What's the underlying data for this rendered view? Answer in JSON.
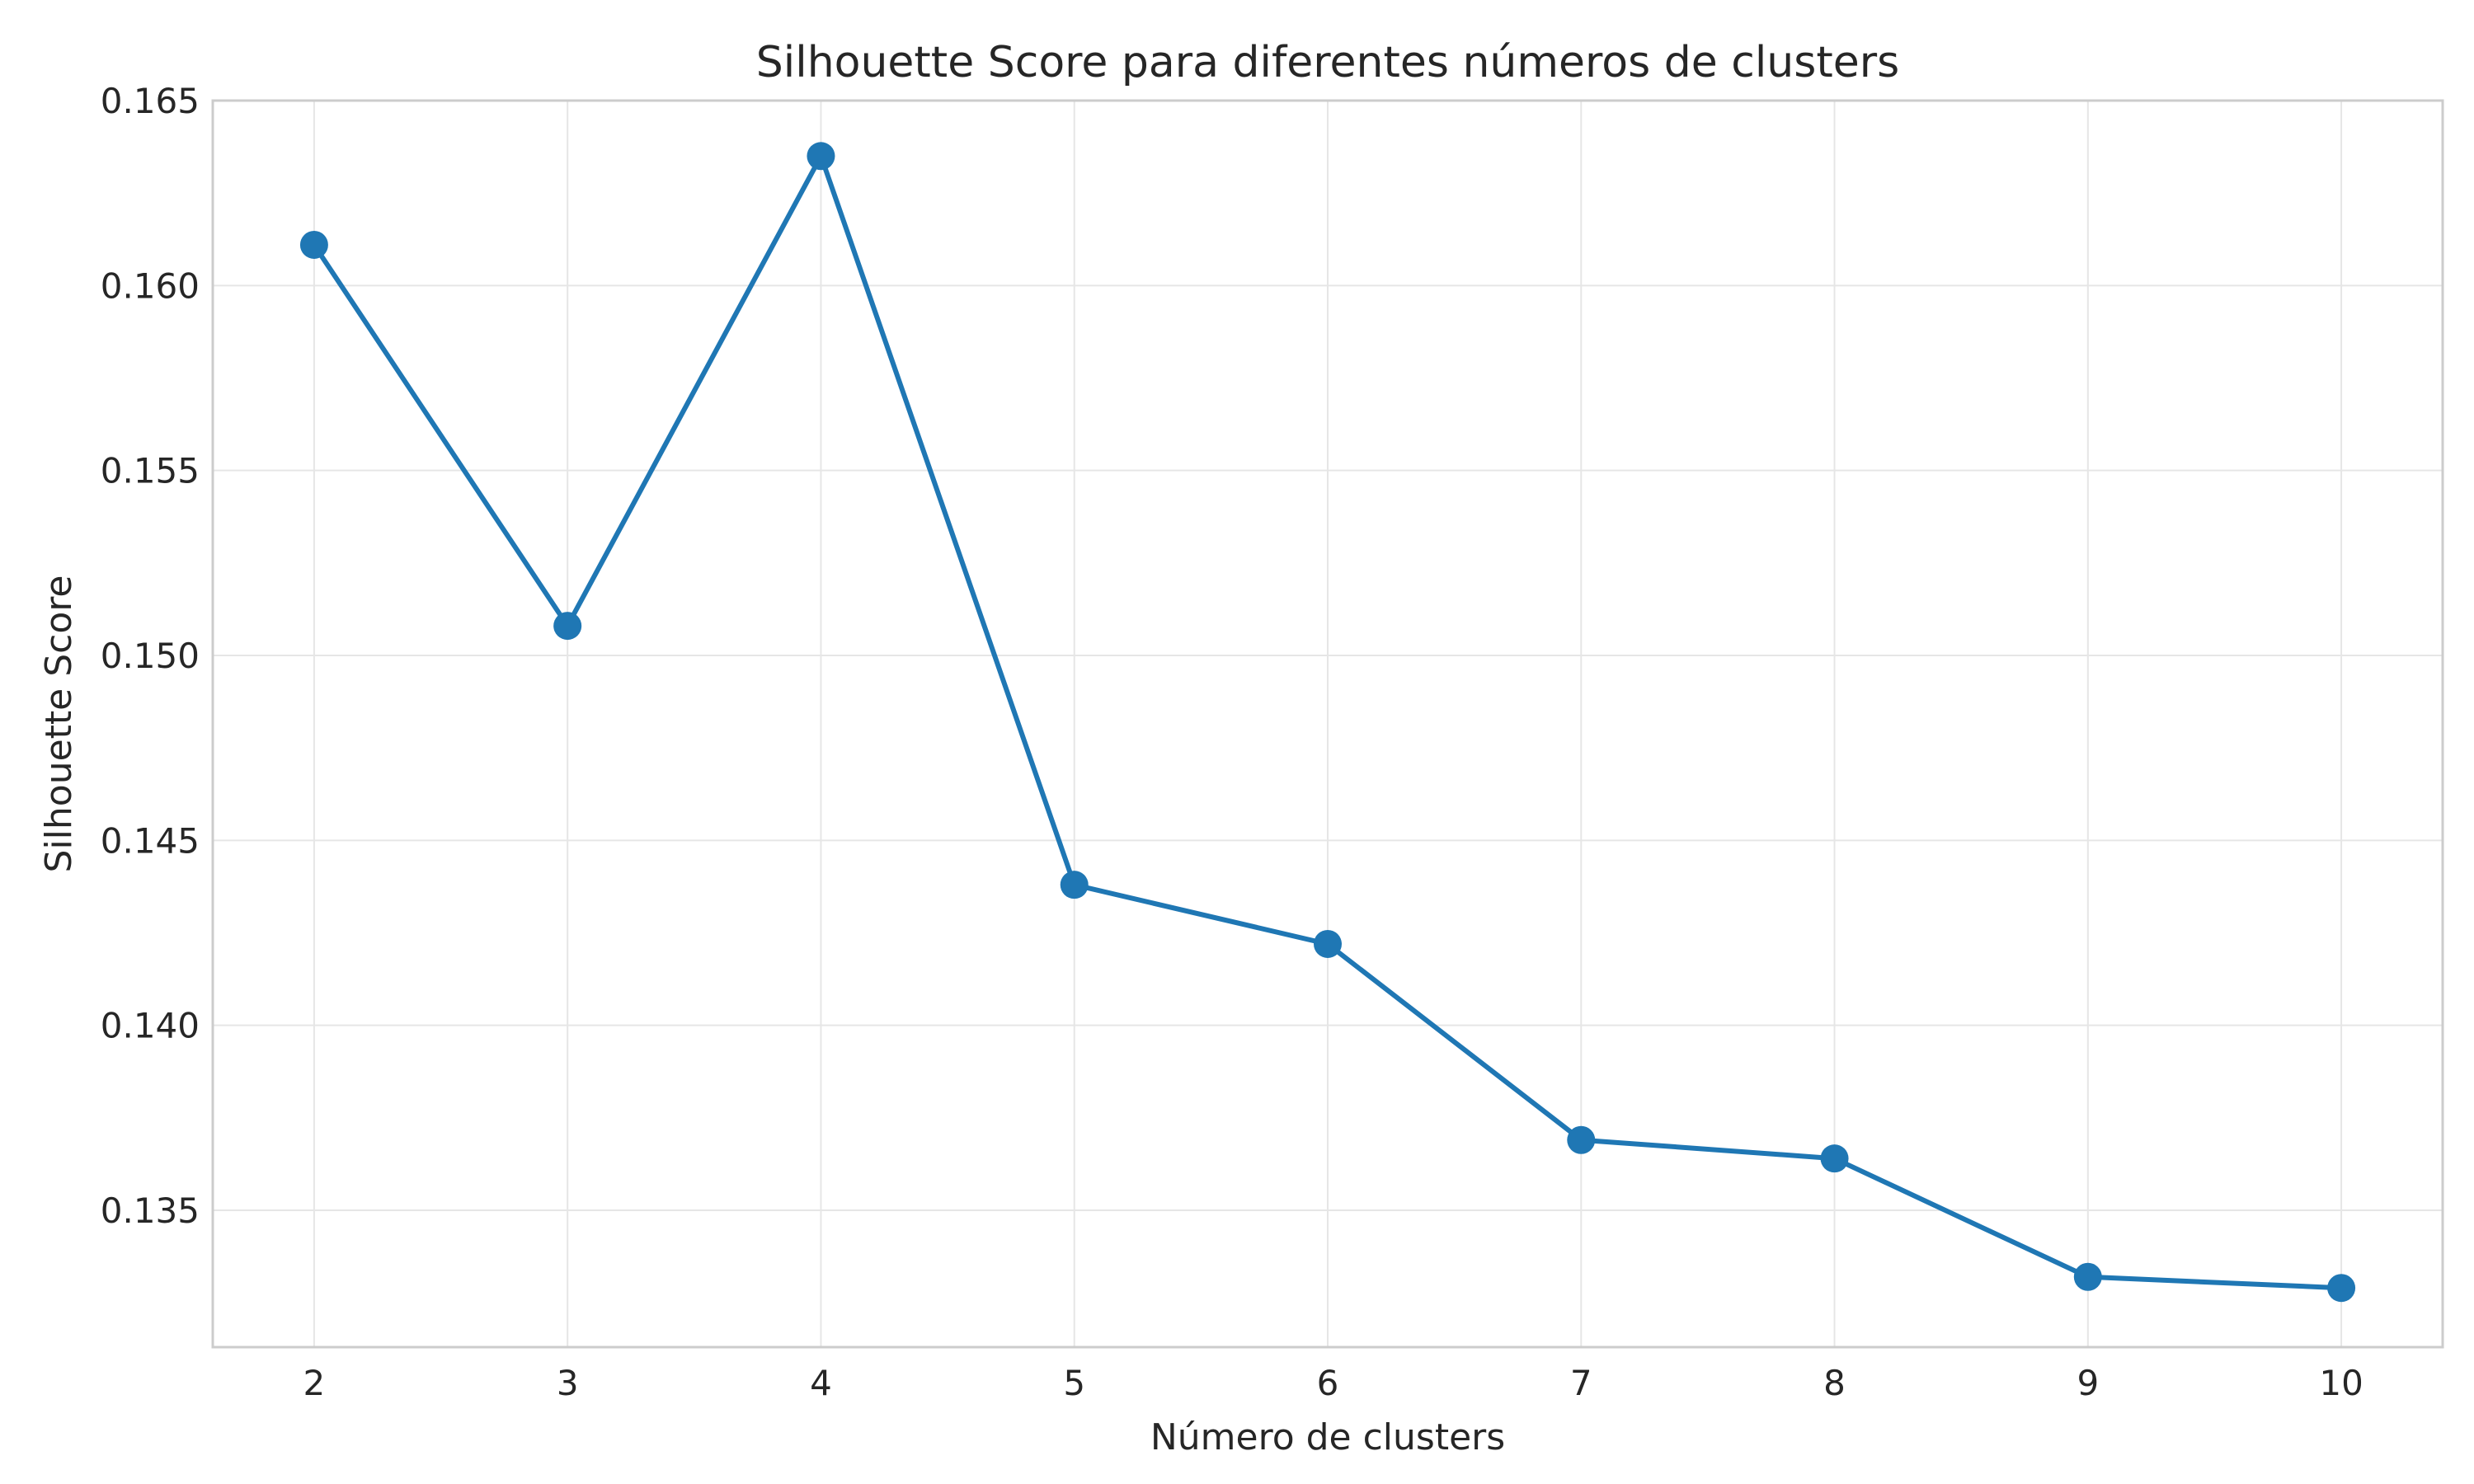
{
  "chart_data": {
    "type": "line",
    "title": "Silhouette Score para diferentes números de clusters",
    "xlabel": "Número de clusters",
    "ylabel": "Silhouette Score",
    "x": [
      2,
      3,
      4,
      5,
      6,
      7,
      8,
      9,
      10
    ],
    "series": [
      {
        "values": [
          0.1611,
          0.1508,
          0.1635,
          0.1438,
          0.1422,
          0.1369,
          0.1364,
          0.1332,
          0.1329
        ],
        "color": "#1f77b4",
        "marker": "circle"
      }
    ],
    "xticks": [
      "2",
      "3",
      "4",
      "5",
      "6",
      "7",
      "8",
      "9",
      "10"
    ],
    "yticks": [
      "0.135",
      "0.140",
      "0.145",
      "0.150",
      "0.155",
      "0.160",
      "0.165"
    ],
    "xlim": [
      1.6,
      10.4
    ],
    "ylim": [
      0.1313,
      0.165
    ],
    "grid": true,
    "legend": "none"
  }
}
